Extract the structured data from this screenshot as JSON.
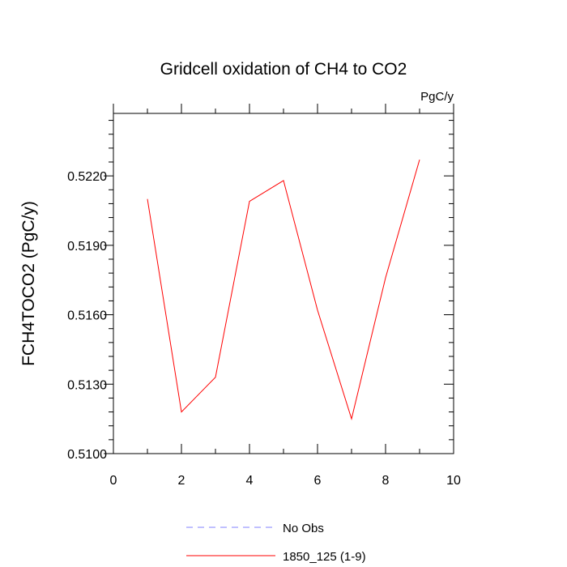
{
  "chart_data": {
    "type": "line",
    "title": "Gridcell oxidation of CH4 to CO2",
    "units_label": "PgC/y",
    "xlabel": "",
    "ylabel": "FCH4TOCO2  (PgC/y)",
    "xlim": [
      0,
      10
    ],
    "ylim": [
      0.51,
      0.5247
    ],
    "x_ticks": [
      0,
      2,
      4,
      6,
      8,
      10
    ],
    "x_tick_labels": [
      "0",
      "2",
      "4",
      "6",
      "8",
      "10"
    ],
    "y_ticks": [
      0.51,
      0.513,
      0.516,
      0.519,
      0.522
    ],
    "y_tick_labels": [
      "0.5100",
      "0.5130",
      "0.5160",
      "0.5190",
      "0.5220"
    ],
    "series": [
      {
        "name": "1850_125 (1-9)",
        "color": "#ff0000",
        "x": [
          1,
          2,
          3,
          4,
          5,
          6,
          7,
          8,
          9
        ],
        "values": [
          0.521,
          0.5118,
          0.5133,
          0.5209,
          0.5218,
          0.5162,
          0.5115,
          0.5176,
          0.5227
        ]
      }
    ],
    "legend": [
      {
        "label": "No Obs",
        "color": "#8080ff",
        "style": "dashed"
      },
      {
        "label": "1850_125 (1-9)",
        "color": "#ff0000",
        "style": "solid"
      }
    ],
    "grid": false
  }
}
